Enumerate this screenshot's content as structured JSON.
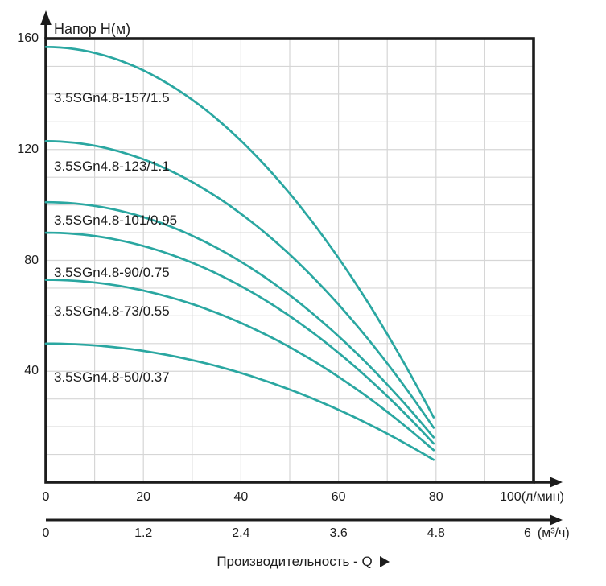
{
  "chart_data": {
    "type": "line",
    "title": "",
    "ylabel": "Напор H(м)",
    "xlabel": "Производительность - Q",
    "x_unit_primary": "(л/мин)",
    "x_unit_secondary": "(м³/ч)",
    "xlim_lmin": [
      0,
      100
    ],
    "ylim_m": [
      0,
      160
    ],
    "grid_step_x_lmin": 10,
    "grid_step_y_m": 10,
    "x_ticks_lmin": [
      "0",
      "20",
      "40",
      "60",
      "80",
      "100"
    ],
    "x_ticks_m3h": [
      "0",
      "1.2",
      "2.4",
      "3.6",
      "4.8",
      "6"
    ],
    "y_ticks_m": [
      "40",
      "80",
      "120",
      "160"
    ],
    "x_samples_lmin": [
      0,
      20,
      40,
      60,
      80
    ],
    "series": [
      {
        "name": "3.5SGn4.8-157/1.5",
        "h0_m": 157,
        "h_end_m": 20,
        "q_end_lmin": 80.5,
        "h_at_samples_m": [
          157,
          149,
          124,
          82,
          23
        ]
      },
      {
        "name": "3.5SGn4.8-123/1.1",
        "h0_m": 123,
        "h_end_m": 17,
        "q_end_lmin": 80.5,
        "h_at_samples_m": [
          123,
          117,
          97,
          65,
          20
        ]
      },
      {
        "name": "3.5SGn4.8-101/0.95",
        "h0_m": 101,
        "h_end_m": 14,
        "q_end_lmin": 80.5,
        "h_at_samples_m": [
          101,
          96,
          80,
          53,
          16
        ]
      },
      {
        "name": "3.5SGn4.8-90/0.75",
        "h0_m": 90,
        "h_end_m": 12,
        "q_end_lmin": 80.5,
        "h_at_samples_m": [
          90,
          85,
          71,
          47,
          14
        ]
      },
      {
        "name": "3.5SGn4.8-73/0.55",
        "h0_m": 73,
        "h_end_m": 10,
        "q_end_lmin": 80.5,
        "h_at_samples_m": [
          73,
          69,
          58,
          38,
          12
        ]
      },
      {
        "name": "3.5SGn4.8-50/0.37",
        "h0_m": 50,
        "h_end_m": 7,
        "q_end_lmin": 80.5,
        "h_at_samples_m": [
          50,
          47,
          40,
          26,
          8
        ]
      }
    ],
    "legend_position": "labels inline left of each curve",
    "grid": "on",
    "colors": {
      "curve": "#2aa7a1",
      "grid": "#d6d6d6",
      "axis": "#1c1c1c",
      "text": "#1d1d1d",
      "background": "#ffffff"
    }
  }
}
